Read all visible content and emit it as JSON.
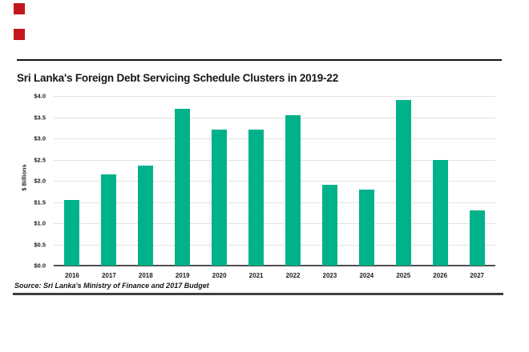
{
  "page": {
    "background": "#ffffff"
  },
  "logo": {
    "color": "#c4161d",
    "squares": [
      "logo-square-top",
      "logo-square-bottom"
    ]
  },
  "source": {
    "text": "Source: Sri Lanka's Ministry of Finance and 2017 Budget"
  },
  "chart_data": {
    "type": "bar",
    "title": "Sri Lanka's Foreign Debt Servicing Schedule Clusters in 2019-22",
    "xlabel": "",
    "ylabel": "$ Billions",
    "categories": [
      "2016",
      "2017",
      "2018",
      "2019",
      "2020",
      "2021",
      "2022",
      "2023",
      "2024",
      "2025",
      "2026",
      "2027"
    ],
    "values": [
      1.55,
      2.15,
      2.35,
      3.7,
      3.2,
      3.2,
      3.55,
      1.9,
      1.8,
      3.9,
      2.5,
      1.3
    ],
    "ylim": [
      0,
      4
    ],
    "ytick_step": 0.5,
    "ytick_labels": [
      "$0.0",
      "$0.5",
      "$1.0",
      "$1.5",
      "$2.0",
      "$2.5",
      "$3.0",
      "$3.5",
      "$4.0"
    ],
    "bar_color": "#00b28a",
    "gridline_color": "#e3e3e3",
    "axis_line_color": "#4f4f4f",
    "grid": true,
    "legend": false
  }
}
